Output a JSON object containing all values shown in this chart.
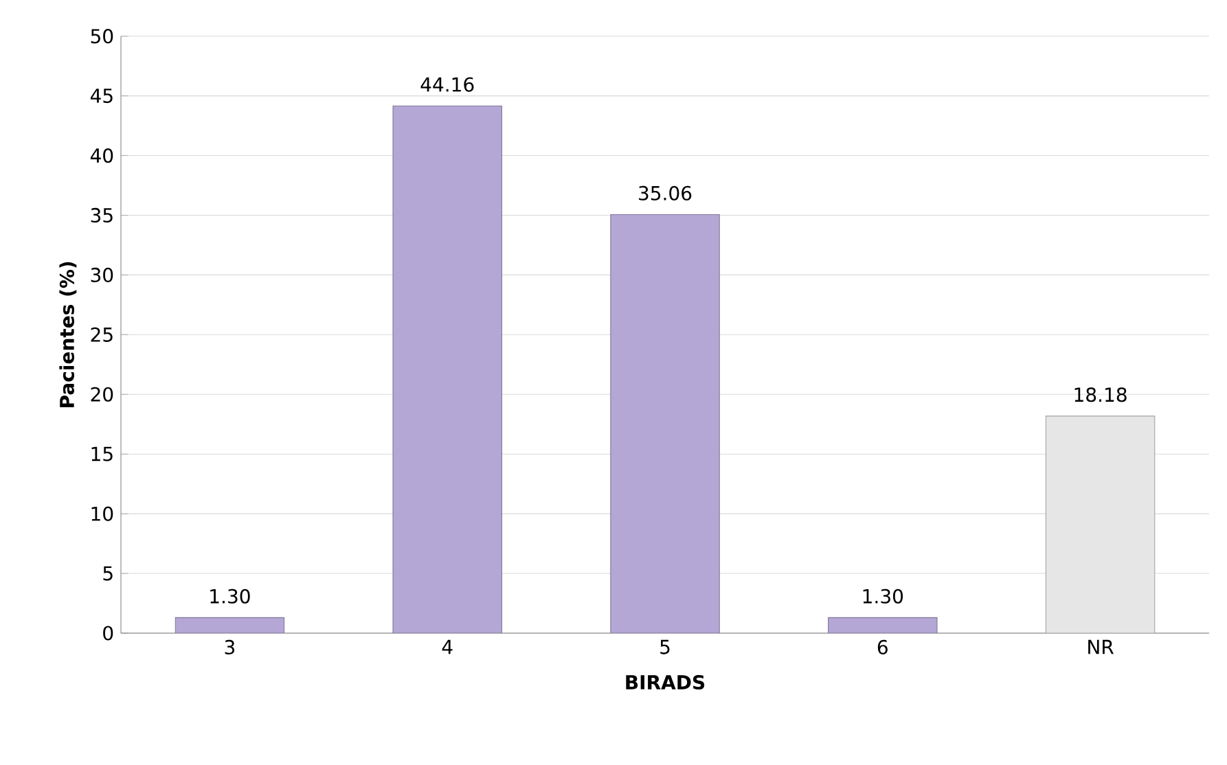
{
  "chart_data": {
    "type": "bar",
    "xlabel": "BIRADS",
    "ylabel": "Pacientes (%)",
    "categories": [
      "3",
      "4",
      "5",
      "6",
      "NR"
    ],
    "values": [
      1.3,
      44.16,
      35.06,
      1.3,
      18.18
    ],
    "value_labels": [
      "1.30",
      "44.16",
      "35.06",
      "1.30",
      "18.18"
    ],
    "colors": [
      "#b4a7d6",
      "#b4a7d6",
      "#b4a7d6",
      "#b4a7d6",
      "#e6e6e6"
    ],
    "ylim": [
      0,
      50
    ],
    "yticks": [
      0,
      5,
      10,
      15,
      20,
      25,
      30,
      35,
      40,
      45,
      50
    ],
    "grid": "y"
  }
}
